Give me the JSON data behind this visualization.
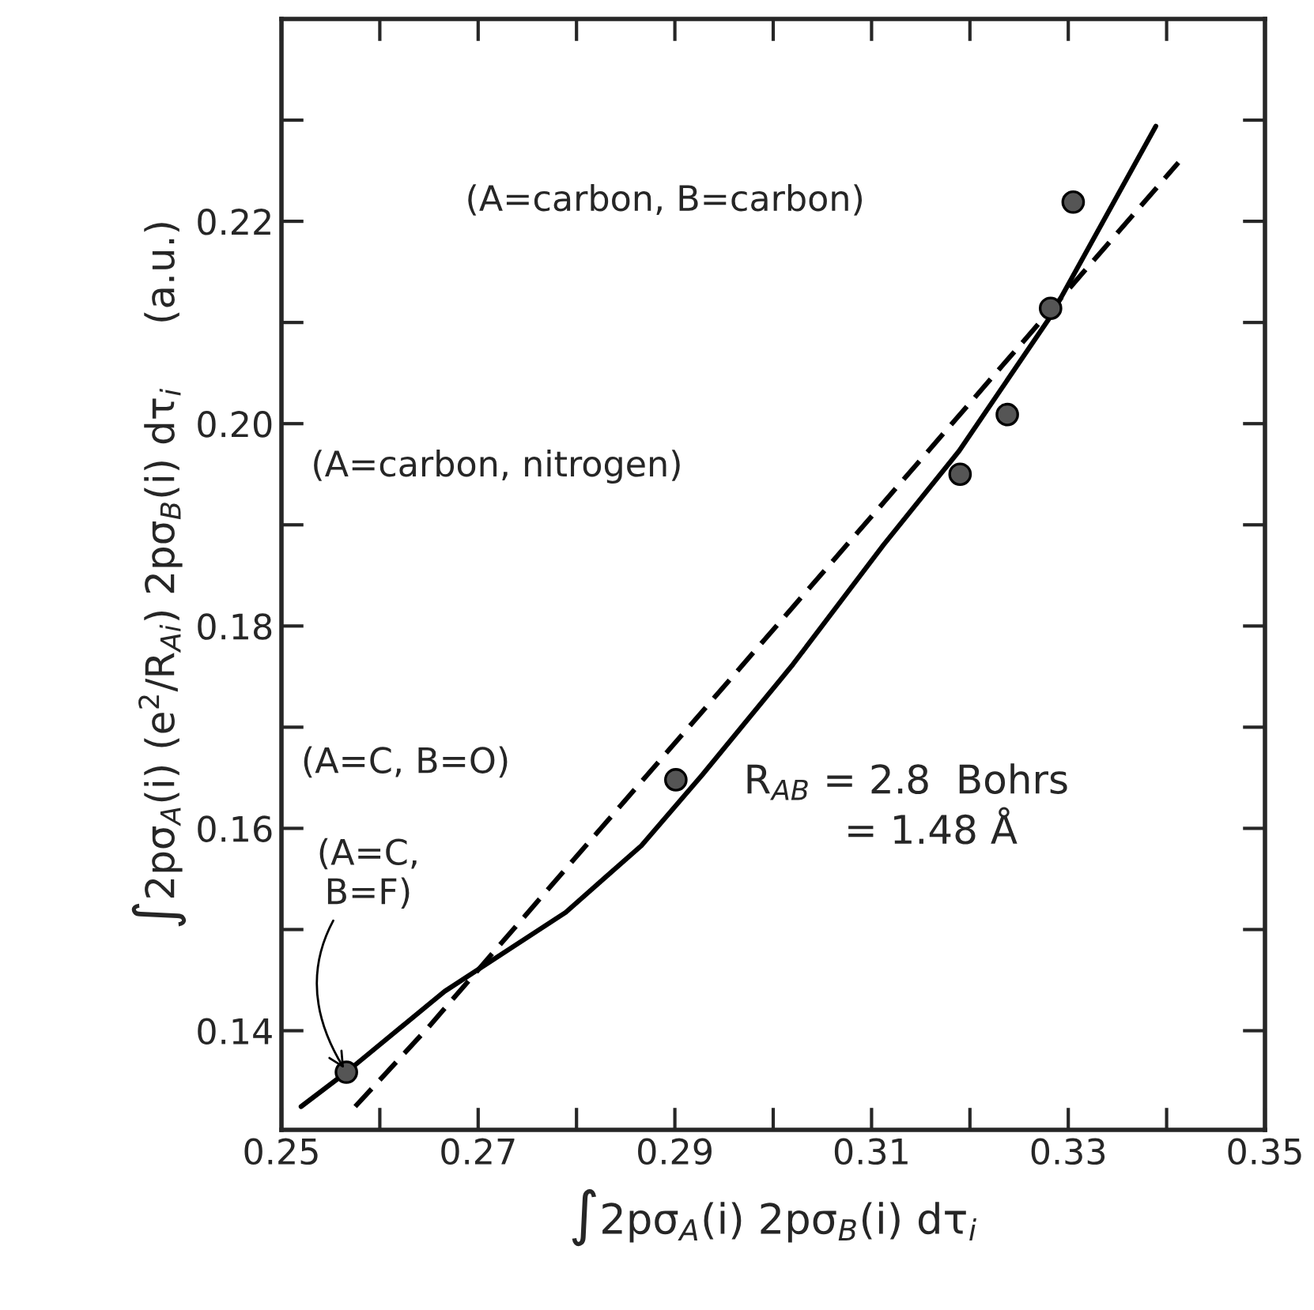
{
  "chart_data": {
    "type": "scatter",
    "xlabel": "∫2pσ$_{A}$(i) 2pσ$_{B}$(i) dτ$_{i}$",
    "ylabel": "∫2pσ$_{A}$(i) (e$^{2}$/R$_{Ai}$) 2pσ$_{B}$(i) dτ$_{i}$     (a.u.)",
    "xlim": [
      0.25,
      0.35
    ],
    "ylim": [
      0.1302,
      0.24
    ],
    "xticks": [
      0.25,
      {
        "value": 0.26,
        "label": null
      },
      0.27,
      {
        "value": 0.28,
        "label": null
      },
      0.29,
      {
        "value": 0.3,
        "label": null
      },
      0.31,
      {
        "value": 0.32,
        "label": null
      },
      0.33,
      {
        "value": 0.34,
        "label": null
      },
      0.35
    ],
    "yticks": [
      0.14,
      {
        "value": 0.15,
        "label": null
      },
      0.16,
      {
        "value": 0.17,
        "label": null
      },
      0.18,
      {
        "value": 0.19,
        "label": null
      },
      {
        "value": 0.2,
        "label": "0.20"
      },
      {
        "value": 0.21,
        "label": null
      },
      0.22,
      {
        "value": 0.23,
        "label": null
      }
    ],
    "grid": false,
    "series": [
      {
        "marker": "circle",
        "color": "#555555",
        "x": [
          0.2566,
          0.2901,
          0.319,
          0.3238,
          0.3282,
          0.3305
        ],
        "values": [
          0.1359,
          0.1648,
          0.195,
          0.2009,
          0.2114,
          0.2219
        ]
      },
      {
        "type": "line",
        "line_style": "solid",
        "marker": "none",
        "color": "#000000",
        "x": [
          0.252,
          0.2566,
          0.2666,
          0.2789,
          0.2866,
          0.2928,
          0.302,
          0.3112,
          0.3189,
          0.3282,
          0.3389
        ],
        "values": [
          0.1325,
          0.1359,
          0.1439,
          0.1517,
          0.1583,
          0.1653,
          0.1762,
          0.188,
          0.1973,
          0.2106,
          0.2294
        ]
      },
      {
        "type": "line",
        "line_style": "dashed",
        "marker": "none",
        "color": "#000000",
        "x": [
          0.2575,
          0.2649,
          0.3412
        ],
        "values": [
          0.1325,
          0.1403,
          0.2258
        ]
      }
    ],
    "annotations": [
      "(A=carbon, B=carbon)",
      "(A=carbon, nitrogen)",
      "(A=C, B=O)",
      {
        "text": "(A=C,\nB=F)",
        "x": 0.2566,
        "y": 0.1359
      },
      "R$_{AB}$ = 2.8  Bohrs\n        = 1.48 Å"
    ]
  }
}
